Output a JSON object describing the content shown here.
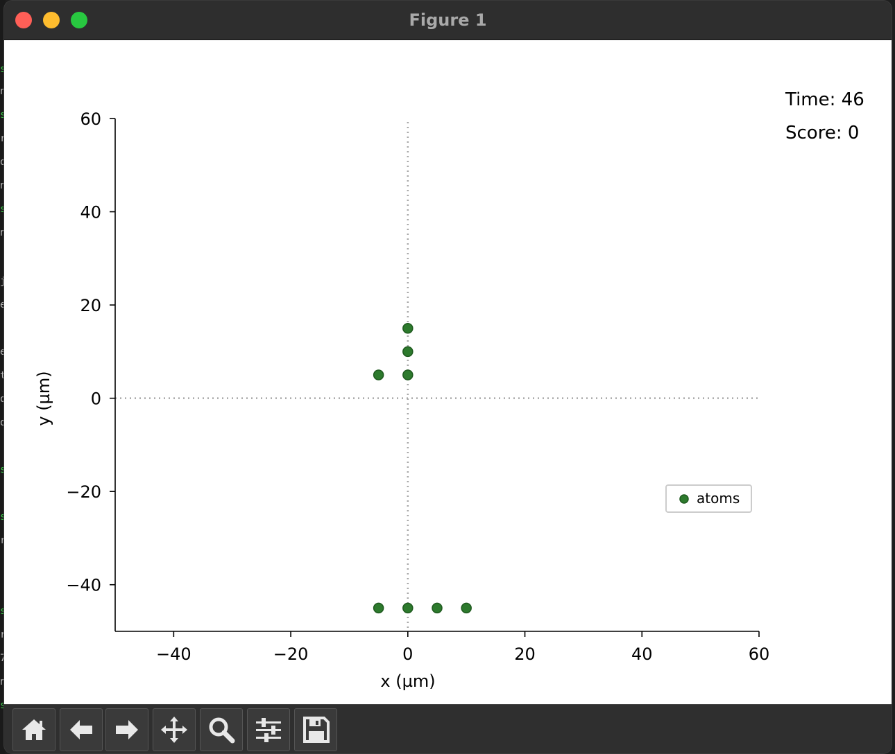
{
  "window": {
    "title": "Figure 1"
  },
  "hud": {
    "time": "Time: 46",
    "score": "Score: 0"
  },
  "toolbar": {
    "buttons": [
      {
        "name": "home-button",
        "icon": "home-icon"
      },
      {
        "name": "back-button",
        "icon": "arrow-left-icon"
      },
      {
        "name": "forward-button",
        "icon": "arrow-right-icon"
      },
      {
        "name": "pan-button",
        "icon": "move-icon"
      },
      {
        "name": "zoom-button",
        "icon": "magnifier-icon"
      },
      {
        "name": "configure-subplots-button",
        "icon": "sliders-icon"
      },
      {
        "name": "save-button",
        "icon": "floppy-disk-icon"
      }
    ]
  },
  "chart_data": {
    "type": "scatter",
    "xlabel": "x (µm)",
    "ylabel": "y (µm)",
    "xlim": [
      -50,
      60
    ],
    "ylim": [
      -50,
      60
    ],
    "xticks": [
      -40,
      -20,
      0,
      20,
      40,
      60
    ],
    "yticks": [
      -40,
      -20,
      0,
      20,
      40,
      60
    ],
    "xtick_labels": [
      "−40",
      "−20",
      "0",
      "20",
      "40",
      "60"
    ],
    "ytick_labels": [
      "−40",
      "−20",
      "0",
      "20",
      "40",
      "60"
    ],
    "grid": false,
    "reference_lines": "dotted lines at x=0 and y=0",
    "legend": {
      "placement": "lower-right",
      "entries": [
        "atoms"
      ]
    },
    "series": [
      {
        "name": "atoms",
        "color": "#2d7a2d",
        "points": [
          {
            "x": 0,
            "y": 15
          },
          {
            "x": 0,
            "y": 10
          },
          {
            "x": -5,
            "y": 5
          },
          {
            "x": 0,
            "y": 5
          },
          {
            "x": -5,
            "y": -45
          },
          {
            "x": 0,
            "y": -45
          },
          {
            "x": 5,
            "y": -45
          },
          {
            "x": 10,
            "y": -45
          }
        ]
      }
    ]
  }
}
